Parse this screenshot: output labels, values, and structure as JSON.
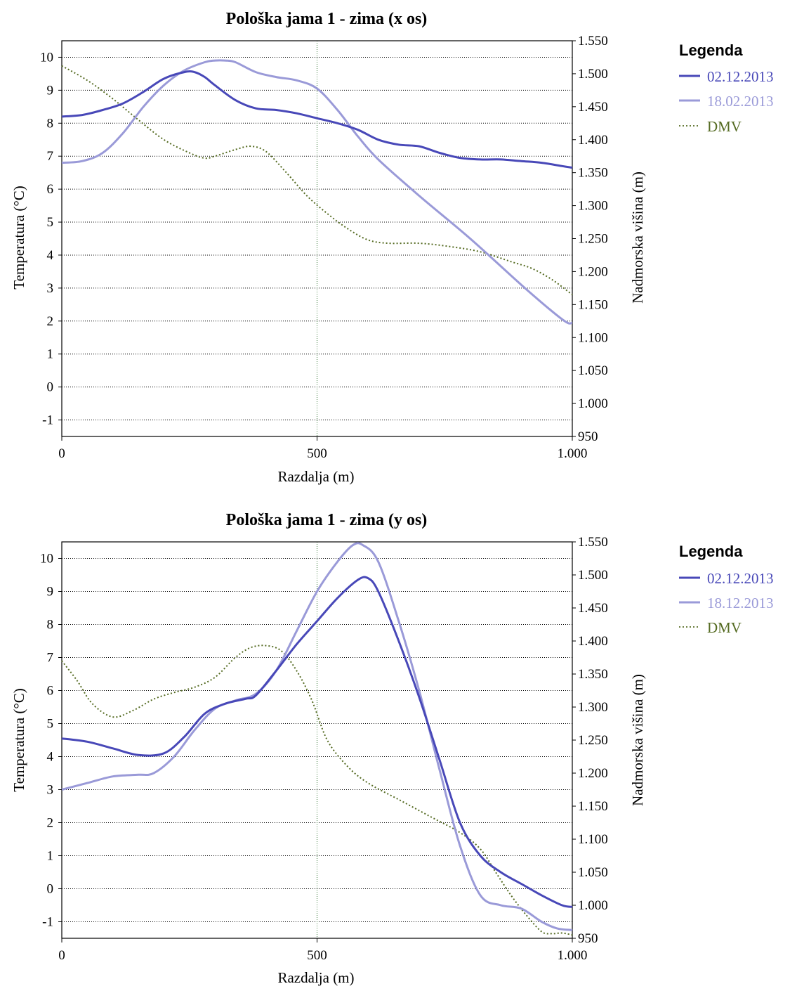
{
  "colors": {
    "series_dark": "#4848b8",
    "series_light": "#9a9ad8",
    "dmv": "#556b22",
    "grid_h": "#000000",
    "grid_v": "#3a7a3a"
  },
  "chart_data": [
    {
      "type": "line",
      "title": "Pološka jama 1 - zima (x os)",
      "xlabel": "Razdalja (m)",
      "ylabel": "Temperatura (°C)",
      "y2label": "Nadmorska višina (m)",
      "xlim": [
        0,
        1000
      ],
      "ylim": [
        -1.5,
        10.5
      ],
      "y2lim": [
        950,
        1550
      ],
      "xticks": [
        0,
        500,
        1000
      ],
      "xtick_labels": [
        "0",
        "500",
        "1.000"
      ],
      "yticks": [
        -1,
        0,
        1,
        2,
        3,
        4,
        5,
        6,
        7,
        8,
        9,
        10
      ],
      "ytick_labels": [
        "-1",
        "0",
        "1",
        "2",
        "3",
        "4",
        "5",
        "6",
        "7",
        "8",
        "9",
        "10"
      ],
      "y2ticks": [
        950,
        1000,
        1050,
        1100,
        1150,
        1200,
        1250,
        1300,
        1350,
        1400,
        1450,
        1500,
        1550
      ],
      "y2tick_labels": [
        "950",
        "1.000",
        "1.050",
        "1.100",
        "1.150",
        "1.200",
        "1.250",
        "1.300",
        "1.350",
        "1.400",
        "1.450",
        "1.500",
        "1.550"
      ],
      "grid": true,
      "legend_title": "Legenda",
      "legend_position": "right",
      "series": [
        {
          "name": "02.12.2013",
          "axis": "left",
          "style": "solid-dark",
          "x": [
            0,
            40,
            80,
            120,
            160,
            200,
            240,
            260,
            280,
            300,
            340,
            380,
            420,
            460,
            500,
            540,
            580,
            620,
            660,
            700,
            740,
            780,
            820,
            860,
            900,
            940,
            980,
            1000
          ],
          "y": [
            8.2,
            8.25,
            8.4,
            8.6,
            8.95,
            9.35,
            9.55,
            9.55,
            9.4,
            9.15,
            8.7,
            8.45,
            8.4,
            8.3,
            8.15,
            8.0,
            7.8,
            7.5,
            7.35,
            7.3,
            7.1,
            6.95,
            6.9,
            6.9,
            6.85,
            6.8,
            6.7,
            6.65
          ]
        },
        {
          "name": "18.02.2013",
          "axis": "left",
          "style": "solid-light",
          "x": [
            0,
            40,
            80,
            120,
            160,
            200,
            240,
            280,
            300,
            320,
            340,
            380,
            420,
            460,
            500,
            540,
            580,
            620,
            700,
            800,
            900,
            960,
            990,
            1000
          ],
          "y": [
            6.8,
            6.85,
            7.1,
            7.7,
            8.5,
            9.15,
            9.6,
            9.85,
            9.9,
            9.9,
            9.85,
            9.55,
            9.4,
            9.3,
            9.05,
            8.4,
            7.6,
            6.9,
            5.8,
            4.5,
            3.1,
            2.3,
            1.95,
            1.95
          ]
        },
        {
          "name": "DMV",
          "axis": "right",
          "style": "dotted",
          "x": [
            0,
            50,
            100,
            150,
            200,
            250,
            280,
            300,
            340,
            370,
            400,
            440,
            480,
            520,
            560,
            600,
            640,
            700,
            760,
            820,
            880,
            920,
            960,
            1000
          ],
          "y": [
            1512,
            1490,
            1462,
            1430,
            1400,
            1380,
            1372,
            1375,
            1385,
            1390,
            1382,
            1350,
            1315,
            1288,
            1265,
            1248,
            1243,
            1243,
            1238,
            1230,
            1215,
            1205,
            1188,
            1165
          ]
        }
      ]
    },
    {
      "type": "line",
      "title": "Pološka jama 1 - zima (y os)",
      "xlabel": "Razdalja (m)",
      "ylabel": "Temperatura (°C)",
      "y2label": "Nadmorska višina (m)",
      "xlim": [
        0,
        1000
      ],
      "ylim": [
        -1.5,
        10.5
      ],
      "y2lim": [
        950,
        1550
      ],
      "xticks": [
        0,
        500,
        1000
      ],
      "xtick_labels": [
        "0",
        "500",
        "1.000"
      ],
      "yticks": [
        -1,
        0,
        1,
        2,
        3,
        4,
        5,
        6,
        7,
        8,
        9,
        10
      ],
      "ytick_labels": [
        "-1",
        "0",
        "1",
        "2",
        "3",
        "4",
        "5",
        "6",
        "7",
        "8",
        "9",
        "10"
      ],
      "y2ticks": [
        950,
        1000,
        1050,
        1100,
        1150,
        1200,
        1250,
        1300,
        1350,
        1400,
        1450,
        1500,
        1550
      ],
      "y2tick_labels": [
        "950",
        "1.000",
        "1.050",
        "1.100",
        "1.150",
        "1.200",
        "1.250",
        "1.300",
        "1.350",
        "1.400",
        "1.450",
        "1.500",
        "1.550"
      ],
      "grid": true,
      "legend_title": "Legenda",
      "legend_position": "right",
      "series": [
        {
          "name": "02.12.2013",
          "axis": "left",
          "style": "solid-dark",
          "x": [
            0,
            50,
            100,
            150,
            200,
            240,
            280,
            320,
            360,
            380,
            420,
            460,
            500,
            540,
            580,
            600,
            620,
            660,
            700,
            740,
            780,
            820,
            860,
            900,
            940,
            980,
            1000
          ],
          "y": [
            4.55,
            4.45,
            4.25,
            4.05,
            4.1,
            4.6,
            5.3,
            5.6,
            5.75,
            5.85,
            6.6,
            7.4,
            8.1,
            8.8,
            9.35,
            9.4,
            9.0,
            7.5,
            5.8,
            3.9,
            2.0,
            1.0,
            0.5,
            0.15,
            -0.2,
            -0.5,
            -0.55
          ]
        },
        {
          "name": "18.12.2013",
          "axis": "left",
          "style": "solid-light",
          "x": [
            0,
            50,
            100,
            150,
            180,
            220,
            260,
            300,
            340,
            380,
            420,
            460,
            500,
            540,
            570,
            590,
            620,
            660,
            700,
            740,
            780,
            820,
            860,
            900,
            940,
            970,
            1000
          ],
          "y": [
            3.0,
            3.2,
            3.4,
            3.45,
            3.5,
            4.0,
            4.8,
            5.45,
            5.7,
            5.9,
            6.6,
            7.8,
            9.0,
            9.9,
            10.4,
            10.4,
            9.9,
            8.1,
            6.0,
            3.6,
            1.3,
            -0.2,
            -0.5,
            -0.6,
            -1.0,
            -1.2,
            -1.25
          ]
        },
        {
          "name": "DMV",
          "axis": "right",
          "style": "dotted",
          "x": [
            0,
            30,
            60,
            100,
            140,
            180,
            220,
            260,
            300,
            340,
            370,
            400,
            430,
            460,
            490,
            520,
            560,
            600,
            660,
            720,
            780,
            820,
            850,
            880,
            910,
            940,
            960,
            980,
            1000
          ],
          "y": [
            1370,
            1340,
            1305,
            1285,
            1295,
            1312,
            1322,
            1330,
            1345,
            1375,
            1390,
            1393,
            1385,
            1355,
            1310,
            1250,
            1210,
            1185,
            1160,
            1135,
            1110,
            1085,
            1050,
            1015,
            985,
            960,
            957,
            958,
            955
          ]
        }
      ]
    }
  ]
}
